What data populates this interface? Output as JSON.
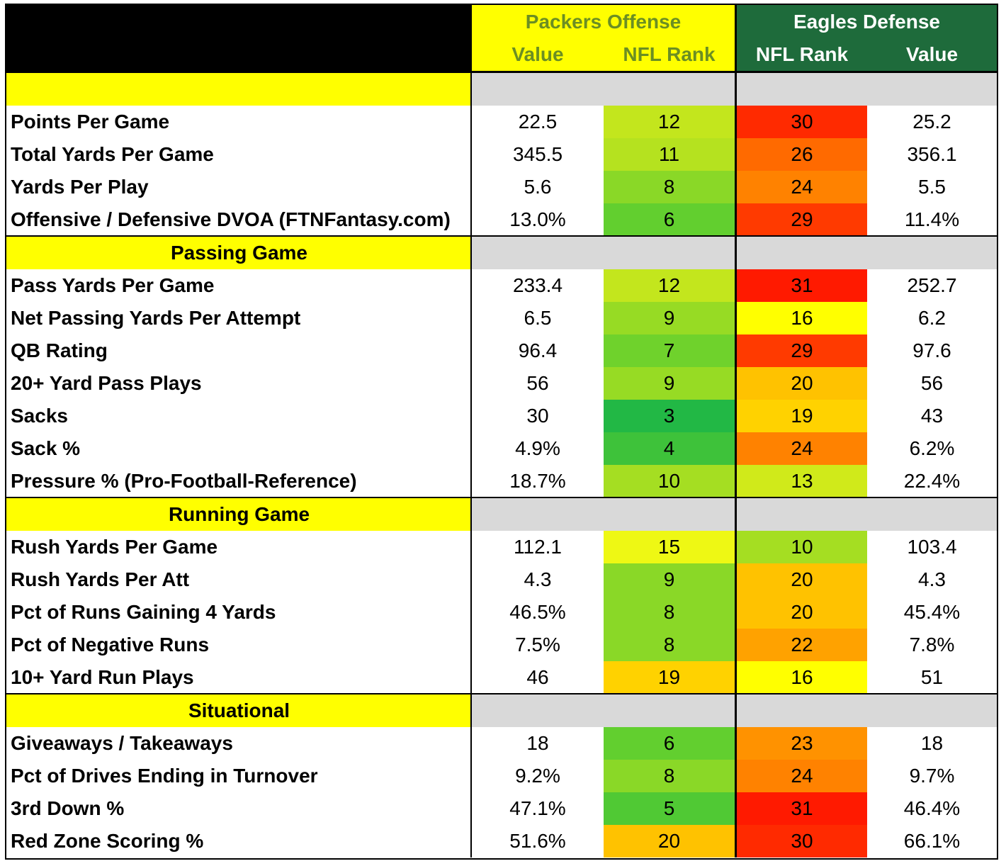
{
  "colors": {
    "header_black": "#000000",
    "packers_yellow": "#ffff00",
    "packers_text": "#6b8e23",
    "eagles_green": "#1e6b3b",
    "eagles_text": "#ffffff",
    "section_gray": "#d9d9d9"
  },
  "header": {
    "packers_title": "Packers Offense",
    "eagles_title": "Eagles Defense",
    "col_value_left": "Value",
    "col_rank_left": "NFL Rank",
    "col_rank_right": "NFL Rank",
    "col_value_right": "Value"
  },
  "sections": [
    {
      "title": "",
      "rows": [
        {
          "label": "Points Per Game",
          "off_value": "22.5",
          "off_rank": "12",
          "def_rank": "30",
          "def_value": "25.2",
          "off_color": "#c3e61d",
          "def_color": "#ff2a00"
        },
        {
          "label": "Total Yards Per Game",
          "off_value": "345.5",
          "off_rank": "11",
          "def_rank": "26",
          "def_value": "356.1",
          "off_color": "#b5e21f",
          "def_color": "#ff6a00"
        },
        {
          "label": "Yards Per Play",
          "off_value": "5.6",
          "off_rank": "8",
          "def_rank": "24",
          "def_value": "5.5",
          "off_color": "#8ad827",
          "def_color": "#ff8200"
        },
        {
          "label": "Offensive / Defensive DVOA (FTNFantasy.com)",
          "off_value": "13.0%",
          "off_rank": "6",
          "def_rank": "29",
          "def_value": "11.4%",
          "off_color": "#62cf2f",
          "def_color": "#ff3a00"
        }
      ]
    },
    {
      "title": "Passing Game",
      "rows": [
        {
          "label": "Pass Yards Per Game",
          "off_value": "233.4",
          "off_rank": "12",
          "def_rank": "31",
          "def_value": "252.7",
          "off_color": "#c3e61d",
          "def_color": "#ff1a00"
        },
        {
          "label": "Net Passing Yards Per Attempt",
          "off_value": "6.5",
          "off_rank": "9",
          "def_rank": "16",
          "def_value": "6.2",
          "off_color": "#97db24",
          "def_color": "#ffff00"
        },
        {
          "label": "QB Rating",
          "off_value": "96.4",
          "off_rank": "7",
          "def_rank": "29",
          "def_value": "97.6",
          "off_color": "#6fd22c",
          "def_color": "#ff3a00"
        },
        {
          "label": "20+ Yard Pass Plays",
          "off_value": "56",
          "off_rank": "9",
          "def_rank": "20",
          "def_value": "56",
          "off_color": "#97db24",
          "def_color": "#ffc200"
        },
        {
          "label": "Sacks",
          "off_value": "30",
          "off_rank": "3",
          "def_rank": "19",
          "def_value": "43",
          "off_color": "#22b845",
          "def_color": "#ffd200"
        },
        {
          "label": "Sack %",
          "off_value": "4.9%",
          "off_rank": "4",
          "def_rank": "24",
          "def_value": "6.2%",
          "off_color": "#3ec23a",
          "def_color": "#ff8200"
        },
        {
          "label": "Pressure % (Pro-Football-Reference)",
          "off_value": "18.7%",
          "off_rank": "10",
          "def_rank": "13",
          "def_value": "22.4%",
          "off_color": "#a5de22",
          "def_color": "#d0ea1a"
        }
      ]
    },
    {
      "title": "Running Game",
      "rows": [
        {
          "label": "Rush Yards Per Game",
          "off_value": "112.1",
          "off_rank": "15",
          "def_rank": "10",
          "def_value": "103.4",
          "off_color": "#eef814",
          "def_color": "#a5de22"
        },
        {
          "label": "Rush Yards Per Att",
          "off_value": "4.3",
          "off_rank": "9",
          "def_rank": "20",
          "def_value": "4.3",
          "off_color": "#8ad827",
          "def_color": "#ffc200"
        },
        {
          "label": "Pct of Runs Gaining 4 Yards",
          "off_value": "46.5%",
          "off_rank": "8",
          "def_rank": "20",
          "def_value": "45.4%",
          "off_color": "#8ad827",
          "def_color": "#ffc200"
        },
        {
          "label": "Pct of Negative Runs",
          "off_value": "7.5%",
          "off_rank": "8",
          "def_rank": "22",
          "def_value": "7.8%",
          "off_color": "#8ad827",
          "def_color": "#ffa200"
        },
        {
          "label": "10+ Yard Run Plays",
          "off_value": "46",
          "off_rank": "19",
          "def_rank": "16",
          "def_value": "51",
          "off_color": "#ffd200",
          "def_color": "#ffff00"
        }
      ]
    },
    {
      "title": "Situational",
      "rows": [
        {
          "label": "Giveaways / Takeaways",
          "off_value": "18",
          "off_rank": "6",
          "def_rank": "23",
          "def_value": "18",
          "off_color": "#62cf2f",
          "def_color": "#ff9200"
        },
        {
          "label": "Pct of Drives Ending in Turnover",
          "off_value": "9.2%",
          "off_rank": "8",
          "def_rank": "24",
          "def_value": "9.7%",
          "off_color": "#8ad827",
          "def_color": "#ff8200"
        },
        {
          "label": "3rd Down %",
          "off_value": "47.1%",
          "off_rank": "5",
          "def_rank": "31",
          "def_value": "46.4%",
          "off_color": "#50c934",
          "def_color": "#ff1a00"
        },
        {
          "label": "Red Zone Scoring %",
          "off_value": "51.6%",
          "off_rank": "20",
          "def_rank": "30",
          "def_value": "66.1%",
          "off_color": "#ffc200",
          "def_color": "#ff2a00"
        }
      ]
    }
  ]
}
